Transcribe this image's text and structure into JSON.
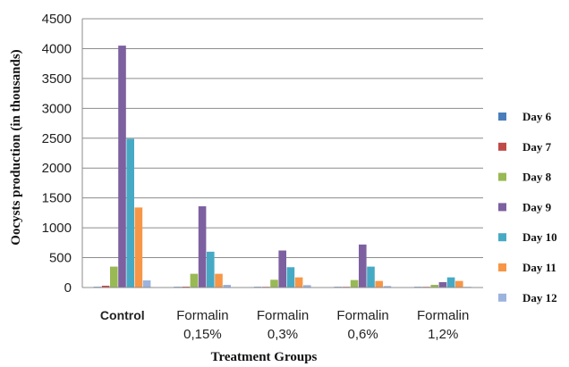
{
  "chart_data": {
    "type": "bar",
    "title": "",
    "xlabel": "Treatment Groups",
    "ylabel": "Oocysts production (in thousands)",
    "ylim": [
      0,
      4500
    ],
    "yticks": [
      0,
      500,
      1000,
      1500,
      2000,
      2500,
      3000,
      3500,
      4000,
      4500
    ],
    "grid": true,
    "legend_position": "right",
    "categories": [
      "Control",
      "Formalin 0,15%",
      "Formalin 0,3%",
      "Formalin 0,6%",
      "Formalin 1,2%"
    ],
    "category_labels": [
      [
        "Control"
      ],
      [
        "Formalin",
        "0,15%"
      ],
      [
        "Formalin",
        "0,3%"
      ],
      [
        "Formalin",
        "0,6%"
      ],
      [
        "Formalin",
        "1,2%"
      ]
    ],
    "series": [
      {
        "name": "Day 6",
        "color": "#4a7ebb",
        "values": [
          10,
          5,
          5,
          5,
          5
        ]
      },
      {
        "name": "Day 7",
        "color": "#be4b48",
        "values": [
          30,
          15,
          10,
          10,
          10
        ]
      },
      {
        "name": "Day 8",
        "color": "#98b954",
        "values": [
          350,
          230,
          130,
          125,
          45
        ]
      },
      {
        "name": "Day 9",
        "color": "#7d60a0",
        "values": [
          4050,
          1360,
          620,
          720,
          90
        ]
      },
      {
        "name": "Day 10",
        "color": "#46aac5",
        "values": [
          2490,
          600,
          340,
          350,
          170
        ]
      },
      {
        "name": "Day 11",
        "color": "#f79646",
        "values": [
          1340,
          230,
          170,
          110,
          110
        ]
      },
      {
        "name": "Day 12",
        "color": "#9cb3dd",
        "values": [
          120,
          45,
          40,
          25,
          10
        ]
      }
    ]
  }
}
